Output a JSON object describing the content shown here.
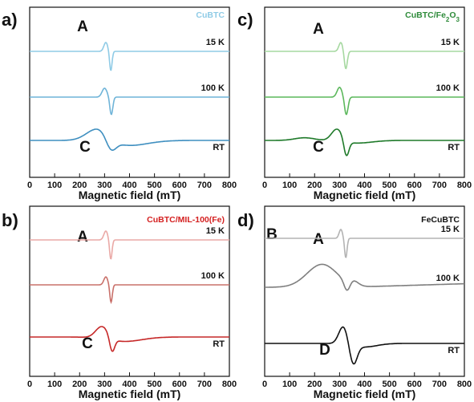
{
  "chart_data": [
    {
      "type": "line",
      "panel": "a)",
      "sample": "CuBTC",
      "xlabel": "Magnetic field (mT)",
      "xlim": [
        0,
        800
      ],
      "xticks": [
        0,
        100,
        200,
        300,
        400,
        500,
        600,
        700,
        800
      ],
      "peak_labels": [
        "A",
        "C"
      ],
      "color": "#8fcbe6",
      "series": [
        {
          "name": "15 K",
          "color": "#8fcbe6",
          "peaks": [
            {
              "x": 305,
              "y": 1.0,
              "w": 8
            },
            {
              "x": 325,
              "y": -2.2,
              "w": 5
            }
          ],
          "baseline_end": 0
        },
        {
          "name": "100 K",
          "color": "#6fb4d8",
          "peaks": [
            {
              "x": 300,
              "y": 1.0,
              "w": 10
            },
            {
              "x": 327,
              "y": -2.0,
              "w": 6
            }
          ],
          "baseline_end": 0
        },
        {
          "name": "RT",
          "color": "#3f8fc0",
          "peaks": [
            {
              "x": 275,
              "y": 1.5,
              "w": 45
            },
            {
              "x": 325,
              "y": -1.4,
              "w": 20
            },
            {
              "x": 390,
              "y": -0.6,
              "w": 80
            }
          ],
          "baseline_end": 0
        }
      ]
    },
    {
      "type": "line",
      "panel": "c)",
      "sample": "CuBTC/Fe2O3",
      "xlabel": "Magnetic field (mT)",
      "xlim": [
        0,
        800
      ],
      "xticks": [
        0,
        100,
        200,
        300,
        400,
        500,
        600,
        700,
        800
      ],
      "peak_labels": [
        "A",
        "C"
      ],
      "color": "#2e8b3a",
      "series": [
        {
          "name": "15 K",
          "color": "#a6d8a0",
          "peaks": [
            {
              "x": 305,
              "y": 1.0,
              "w": 8
            },
            {
              "x": 325,
              "y": -2.0,
              "w": 6
            }
          ],
          "baseline_end": 0
        },
        {
          "name": "100 K",
          "color": "#5cb85c",
          "peaks": [
            {
              "x": 300,
              "y": 1.1,
              "w": 10
            },
            {
              "x": 327,
              "y": -2.0,
              "w": 7
            }
          ],
          "baseline_end": 0
        },
        {
          "name": "RT",
          "color": "#1f7a2a",
          "peaks": [
            {
              "x": 160,
              "y": 0.3,
              "w": 40
            },
            {
              "x": 290,
              "y": 1.4,
              "w": 22
            },
            {
              "x": 327,
              "y": -1.8,
              "w": 10
            },
            {
              "x": 370,
              "y": -0.3,
              "w": 60
            }
          ],
          "baseline_end": 0
        }
      ]
    },
    {
      "type": "line",
      "panel": "b)",
      "sample": "CuBTC/MIL-100(Fe)",
      "xlabel": "Magnetic field (mT)",
      "xlim": [
        0,
        800
      ],
      "xticks": [
        0,
        100,
        200,
        300,
        400,
        500,
        600,
        700,
        800
      ],
      "peak_labels": [
        "A",
        "C"
      ],
      "color": "#d42020",
      "series": [
        {
          "name": "15 K",
          "color": "#eaa9a6",
          "peaks": [
            {
              "x": 305,
              "y": 1.0,
              "w": 8
            },
            {
              "x": 325,
              "y": -2.2,
              "w": 5
            }
          ],
          "baseline_end": 0
        },
        {
          "name": "100 K",
          "color": "#c9706a",
          "peaks": [
            {
              "x": 305,
              "y": 0.9,
              "w": 8
            },
            {
              "x": 326,
              "y": -2.0,
              "w": 5
            }
          ],
          "baseline_end": 0
        },
        {
          "name": "RT",
          "color": "#c62828",
          "peaks": [
            {
              "x": 290,
              "y": 1.4,
              "w": 25
            },
            {
              "x": 330,
              "y": -1.6,
              "w": 10
            },
            {
              "x": 380,
              "y": -0.5,
              "w": 70
            }
          ],
          "baseline_end": 0
        }
      ]
    },
    {
      "type": "line",
      "panel": "d)",
      "sample": "FeCuBTC",
      "xlabel": "Magnetic field (mT)",
      "xlim": [
        0,
        800
      ],
      "xticks": [
        0,
        100,
        200,
        300,
        400,
        500,
        600,
        700,
        800
      ],
      "peak_labels": [
        "B",
        "A",
        "D"
      ],
      "color": "#111111",
      "series": [
        {
          "name": "15 K",
          "color": "#b3b3b3",
          "peaks": [
            {
              "x": 305,
              "y": 1.0,
              "w": 7
            },
            {
              "x": 325,
              "y": -2.2,
              "w": 5
            }
          ],
          "baseline_end": 0
        },
        {
          "name": "100 K",
          "color": "#7f7f7f",
          "peaks": [
            {
              "x": 230,
              "y": 2.6,
              "w": 60
            },
            {
              "x": 330,
              "y": -1.2,
              "w": 12
            },
            {
              "x": 355,
              "y": 0.5,
              "w": 20
            }
          ],
          "baseline_end": 0.4
        },
        {
          "name": "RT",
          "color": "#111111",
          "peaks": [
            {
              "x": 315,
              "y": 2.0,
              "w": 18
            },
            {
              "x": 355,
              "y": -2.2,
              "w": 15
            },
            {
              "x": 400,
              "y": -0.4,
              "w": 50
            }
          ],
          "baseline_end": 0
        }
      ]
    }
  ]
}
